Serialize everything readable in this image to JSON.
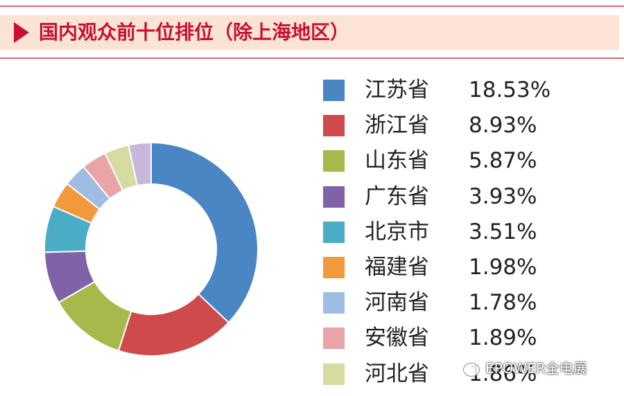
{
  "header": {
    "title": "国内观众前十位排位（除上海地区）"
  },
  "watermark": {
    "text": "EPOWER全电展"
  },
  "chart_data": {
    "type": "pie",
    "donut": true,
    "legend_position": "right",
    "slices": [
      {
        "label": "江苏省",
        "value": 18.53,
        "value_label": "18.53%",
        "color": "#4a86c4"
      },
      {
        "label": "浙江省",
        "value": 8.93,
        "value_label": "8.93%",
        "color": "#cf4a4b"
      },
      {
        "label": "山东省",
        "value": 5.87,
        "value_label": "5.87%",
        "color": "#a6b94a"
      },
      {
        "label": "广东省",
        "value": 3.93,
        "value_label": "3.93%",
        "color": "#8062a8"
      },
      {
        "label": "北京市",
        "value": 3.51,
        "value_label": "3.51%",
        "color": "#4bacc6"
      },
      {
        "label": "福建省",
        "value": 1.98,
        "value_label": "1.98%",
        "color": "#f29a3b"
      },
      {
        "label": "河南省",
        "value": 1.78,
        "value_label": "1.78%",
        "color": "#9fbde3"
      },
      {
        "label": "安徽省",
        "value": 1.89,
        "value_label": "1.89%",
        "color": "#e8a4a6"
      },
      {
        "label": "河北省",
        "value": 1.86,
        "value_label": "1.86%",
        "color": "#d6dba0"
      }
    ],
    "extra_slices": [
      {
        "value": 1.7,
        "color": "#c6b8d8"
      }
    ]
  }
}
